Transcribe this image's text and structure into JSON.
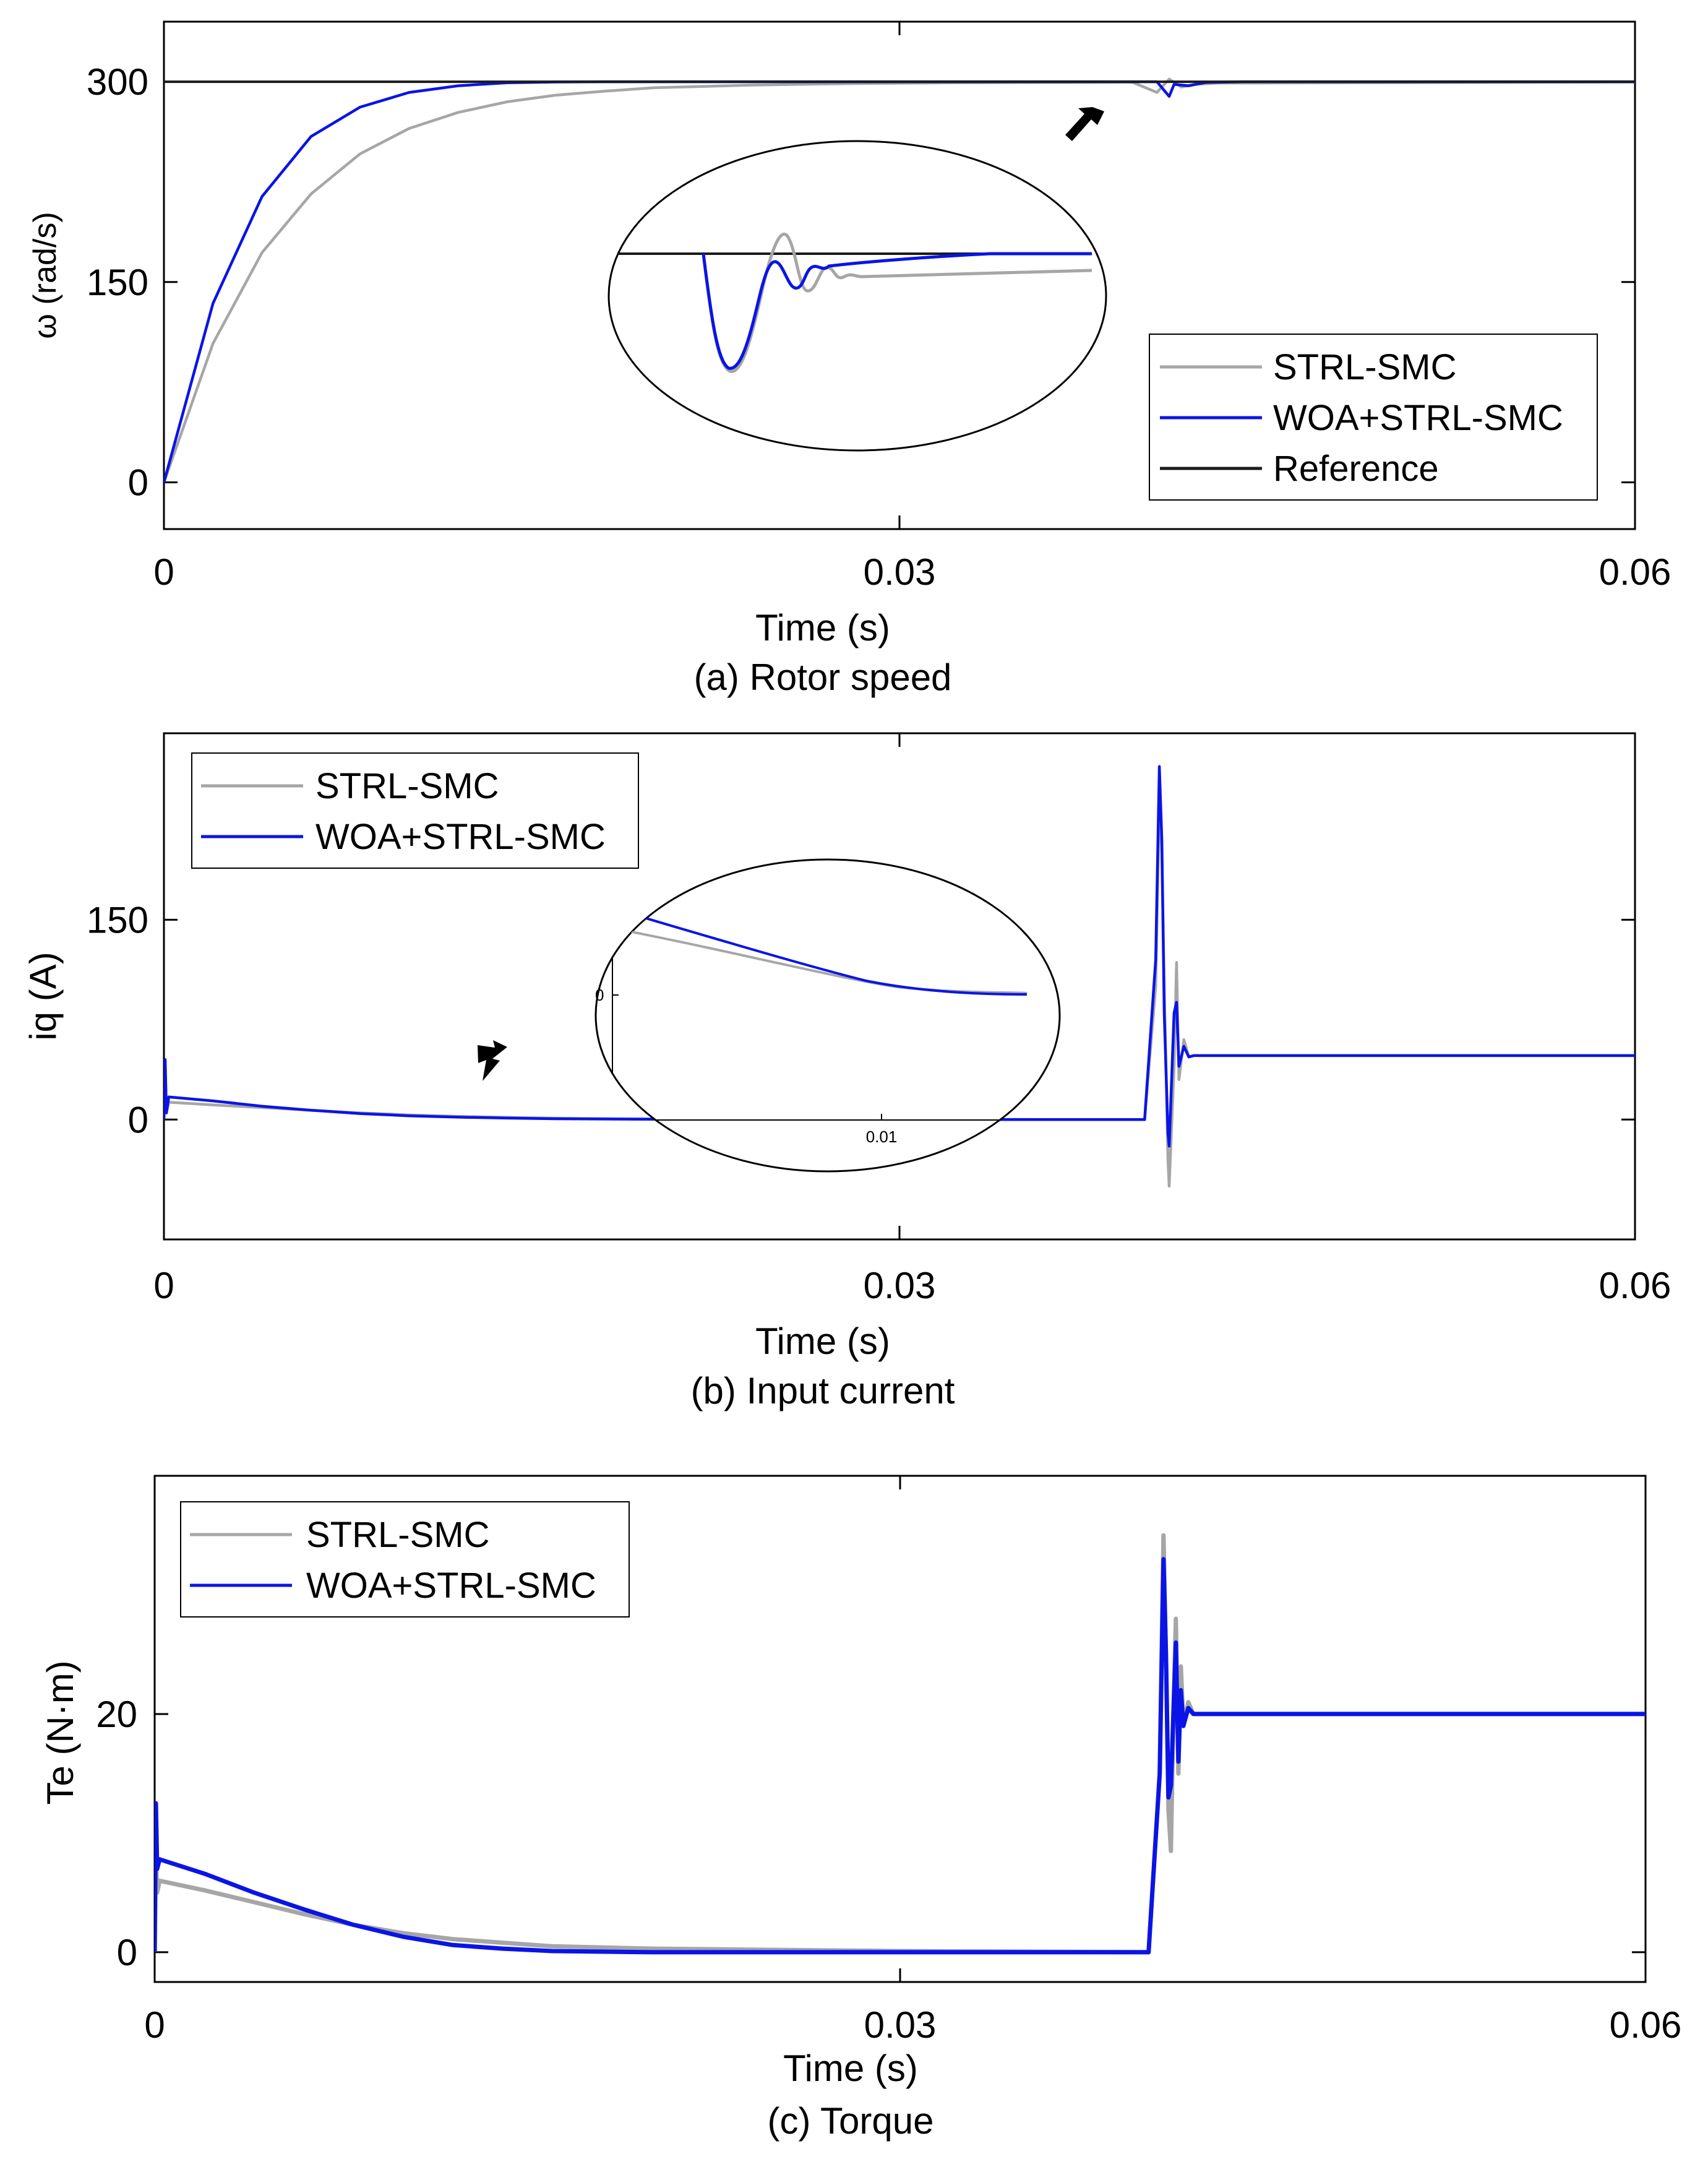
{
  "colors": {
    "strl": "#a6a6a6",
    "woa": "#0a14e6",
    "reference": "#1a1a1a",
    "axis": "#000000"
  },
  "chart_data": [
    {
      "id": "speed",
      "type": "line",
      "title": "",
      "caption": "(a) Rotor speed",
      "xlabel": "Time (s)",
      "ylabel": "ω (rad/s)",
      "xlim": [
        0,
        0.06
      ],
      "ylim": [
        -35,
        345
      ],
      "xticks": [
        0,
        0.03,
        0.06
      ],
      "xtick_labels": [
        "0",
        "0.03",
        "0.06"
      ],
      "yticks": [
        0,
        150,
        300
      ],
      "ytick_labels": [
        "0",
        "150",
        "300"
      ],
      "legend_position": "lower-right",
      "series": [
        {
          "name": "STRL-SMC",
          "color_key": "strl",
          "x": [
            0,
            0.002,
            0.004,
            0.006,
            0.008,
            0.01,
            0.012,
            0.014,
            0.016,
            0.018,
            0.02,
            0.024,
            0.028,
            0.032,
            0.036,
            0.0395,
            0.0405,
            0.041,
            0.0415,
            0.042,
            0.043,
            0.06
          ],
          "y": [
            0,
            104,
            172,
            216,
            246,
            265,
            277,
            285,
            290,
            293,
            295.5,
            297.5,
            298.6,
            299.2,
            299.5,
            299.7,
            292,
            302,
            296,
            298,
            299,
            299.8
          ]
        },
        {
          "name": "WOA+STRL-SMC",
          "color_key": "woa",
          "x": [
            0,
            0.002,
            0.004,
            0.006,
            0.008,
            0.01,
            0.012,
            0.014,
            0.016,
            0.018,
            0.02,
            0.024,
            0.028,
            0.032,
            0.036,
            0.0405,
            0.041,
            0.0412,
            0.0418,
            0.0425,
            0.044,
            0.06
          ],
          "y": [
            0,
            134,
            214,
            259,
            281,
            292,
            297,
            299.2,
            299.8,
            300,
            300,
            300,
            300,
            300,
            300,
            300,
            289,
            298,
            297,
            299.5,
            300,
            300
          ]
        },
        {
          "name": "Reference",
          "color_key": "reference",
          "x": [
            0,
            0.06
          ],
          "y": [
            300,
            300
          ]
        }
      ],
      "annotations": [
        {
          "type": "arrow",
          "direction": "down-left",
          "x": 0.0375,
          "y": 262
        },
        {
          "type": "zoom-inset",
          "x_center": 0.0282,
          "y_center": 135,
          "width_data": 0.0202,
          "height_data": 115
        }
      ]
    },
    {
      "id": "current",
      "type": "line",
      "title": "",
      "caption": "(b) Input current",
      "xlabel": "Time (s)",
      "ylabel": "iq (A)",
      "xlim": [
        0,
        0.06
      ],
      "ylim": [
        -90,
        290
      ],
      "xticks": [
        0,
        0.03,
        0.06
      ],
      "xtick_labels": [
        "0",
        "0.03",
        "0.06"
      ],
      "yticks": [
        0,
        150
      ],
      "ytick_labels": [
        "0",
        "150"
      ],
      "legend_position": "top-left",
      "series": [
        {
          "name": "STRL-SMC",
          "color_key": "strl",
          "x": [
            0,
            5e-05,
            0.0001,
            0.0002,
            0.002,
            0.004,
            0.006,
            0.008,
            0.01,
            0.012,
            0.014,
            0.016,
            0.02,
            0.03,
            0.04,
            0.04045,
            0.0406,
            0.0407,
            0.0408,
            0.04095,
            0.041,
            0.0412,
            0.0413,
            0.0414,
            0.0416,
            0.0418,
            0.042,
            0.06
          ],
          "y": [
            0,
            40,
            5,
            13,
            11,
            9,
            7,
            5,
            3.5,
            2.4,
            1.6,
            1.0,
            0.4,
            0.1,
            0,
            100,
            240,
            200,
            100,
            -30,
            -50,
            40,
            118,
            30,
            60,
            47,
            48,
            48
          ]
        },
        {
          "name": "WOA+STRL-SMC",
          "color_key": "woa",
          "x": [
            0,
            5e-05,
            0.0001,
            0.0002,
            0.002,
            0.004,
            0.006,
            0.008,
            0.01,
            0.012,
            0.014,
            0.016,
            0.02,
            0.03,
            0.04,
            0.04045,
            0.0406,
            0.0407,
            0.0408,
            0.04095,
            0.041,
            0.0412,
            0.0413,
            0.0414,
            0.0416,
            0.0418,
            0.042,
            0.06
          ],
          "y": [
            0,
            45,
            5,
            17,
            14,
            10,
            7,
            4.5,
            2.8,
            1.8,
            1.1,
            0.6,
            0.2,
            0.05,
            0,
            120,
            265,
            210,
            80,
            -10,
            -20,
            80,
            88,
            40,
            55,
            47,
            48,
            48
          ]
        }
      ],
      "annotations": [
        {
          "type": "arrow",
          "direction": "right-down",
          "x": 0.014,
          "y": 45
        },
        {
          "type": "zoom-inset",
          "x_center": 0.0259,
          "y_center": 115,
          "width_data": 0.0186,
          "height_data": 138,
          "inset_tick_x": "0.01",
          "inset_tick_y": "0"
        }
      ]
    },
    {
      "id": "torque",
      "type": "line",
      "title": "",
      "caption": "(c) Torque",
      "xlabel": "Time (s)",
      "ylabel": "Te (N·m)",
      "xlim": [
        0,
        0.06
      ],
      "ylim": [
        -2.5,
        40
      ],
      "xticks": [
        0,
        0.03,
        0.06
      ],
      "xtick_labels": [
        "0",
        "0.03",
        "0.06"
      ],
      "yticks": [
        0,
        20
      ],
      "ytick_labels": [
        "0",
        "20"
      ],
      "legend_position": "top-left",
      "series": [
        {
          "name": "STRL-SMC",
          "color_key": "strl",
          "x": [
            0,
            5e-05,
            0.0001,
            0.0002,
            0.002,
            0.004,
            0.006,
            0.008,
            0.01,
            0.012,
            0.014,
            0.016,
            0.02,
            0.03,
            0.04,
            0.04045,
            0.0406,
            0.0407,
            0.0408,
            0.0409,
            0.041,
            0.0411,
            0.0412,
            0.0413,
            0.0414,
            0.0416,
            0.0418,
            0.042,
            0.06
          ],
          "y": [
            0,
            8,
            5,
            6,
            5.2,
            4.2,
            3.2,
            2.3,
            1.6,
            1.1,
            0.8,
            0.5,
            0.3,
            0.1,
            0,
            15,
            35,
            25,
            12,
            8.5,
            20,
            28,
            15,
            24,
            19,
            21,
            20,
            20,
            20
          ]
        },
        {
          "name": "WOA+STRL-SMC",
          "color_key": "woa",
          "x": [
            0,
            5e-05,
            0.0001,
            0.0002,
            0.002,
            0.004,
            0.006,
            0.008,
            0.01,
            0.012,
            0.014,
            0.016,
            0.02,
            0.03,
            0.04,
            0.04045,
            0.0406,
            0.0407,
            0.0408,
            0.0409,
            0.041,
            0.0411,
            0.0412,
            0.0413,
            0.0414,
            0.0416,
            0.0418,
            0.042,
            0.06
          ],
          "y": [
            0,
            12.5,
            7,
            7.8,
            6.6,
            5,
            3.6,
            2.3,
            1.3,
            0.6,
            0.3,
            0.1,
            0,
            0,
            0,
            15,
            33,
            25,
            13,
            14,
            20,
            26,
            16,
            22,
            19,
            20.5,
            20,
            20,
            20
          ]
        }
      ],
      "annotations": []
    }
  ]
}
